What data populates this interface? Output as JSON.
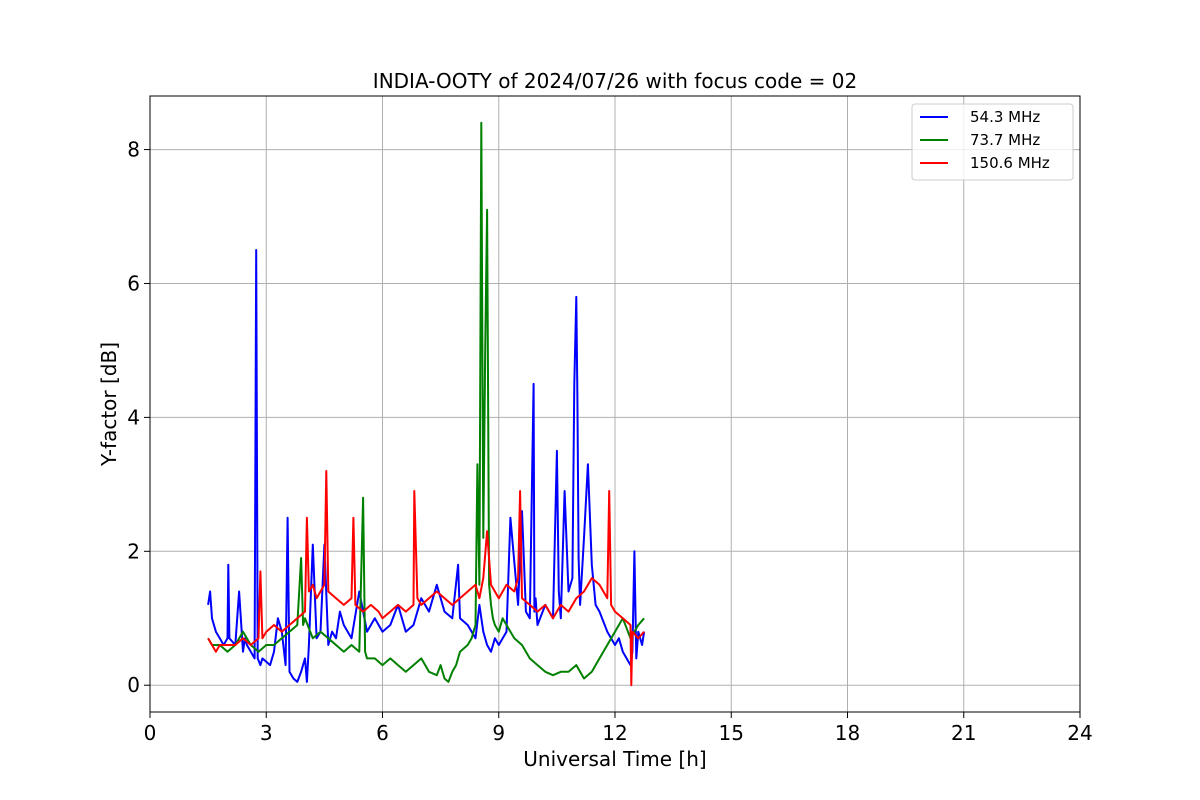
{
  "chart_data": {
    "type": "line",
    "title": "INDIA-OOTY of 2024/07/26 with focus code = 02",
    "xlabel": "Universal Time [h]",
    "ylabel": "Y-factor [dB]",
    "xlim": [
      0,
      24
    ],
    "ylim": [
      -0.4,
      8.8
    ],
    "xticks": [
      0,
      3,
      6,
      9,
      12,
      15,
      18,
      21,
      24
    ],
    "yticks": [
      0,
      2,
      4,
      6,
      8
    ],
    "grid": true,
    "legend_position": "top-right",
    "series": [
      {
        "name": " 54.3 MHz",
        "color": "#0000ff",
        "x": [
          1.5,
          1.55,
          1.6,
          1.7,
          1.8,
          1.9,
          2.0,
          2.02,
          2.05,
          2.2,
          2.3,
          2.4,
          2.45,
          2.5,
          2.6,
          2.7,
          2.74,
          2.78,
          2.85,
          2.9,
          3.0,
          3.1,
          3.2,
          3.3,
          3.4,
          3.5,
          3.55,
          3.6,
          3.7,
          3.8,
          3.9,
          4.0,
          4.05,
          4.1,
          4.2,
          4.3,
          4.4,
          4.5,
          4.6,
          4.7,
          4.8,
          4.9,
          5.0,
          5.2,
          5.4,
          5.6,
          5.8,
          6.0,
          6.2,
          6.4,
          6.6,
          6.8,
          7.0,
          7.2,
          7.4,
          7.6,
          7.8,
          7.95,
          8.0,
          8.2,
          8.4,
          8.5,
          8.6,
          8.7,
          8.8,
          8.9,
          9.0,
          9.2,
          9.3,
          9.5,
          9.6,
          9.7,
          9.8,
          9.9,
          9.92,
          9.95,
          10.0,
          10.2,
          10.4,
          10.5,
          10.55,
          10.6,
          10.7,
          10.8,
          10.9,
          10.95,
          11.0,
          11.03,
          11.06,
          11.1,
          11.2,
          11.3,
          11.4,
          11.5,
          11.6,
          11.8,
          12.0,
          12.1,
          12.2,
          12.3,
          12.4,
          12.45,
          12.5,
          12.55,
          12.6,
          12.7,
          12.75
        ],
        "values": [
          1.2,
          1.4,
          1.0,
          0.8,
          0.7,
          0.6,
          0.7,
          1.8,
          0.7,
          0.6,
          1.4,
          0.5,
          0.7,
          0.6,
          0.5,
          0.4,
          6.5,
          0.4,
          0.3,
          0.4,
          0.35,
          0.3,
          0.5,
          1.0,
          0.8,
          0.3,
          2.5,
          0.2,
          0.1,
          0.05,
          0.2,
          0.4,
          0.05,
          0.6,
          2.1,
          0.7,
          0.8,
          2.1,
          0.6,
          0.8,
          0.7,
          1.1,
          0.9,
          0.7,
          1.4,
          0.8,
          1.0,
          0.8,
          0.9,
          1.2,
          0.8,
          0.9,
          1.3,
          1.1,
          1.5,
          1.1,
          1.0,
          1.8,
          1.0,
          0.9,
          0.7,
          1.2,
          0.8,
          0.6,
          0.5,
          0.7,
          0.6,
          0.8,
          2.5,
          1.2,
          2.6,
          1.1,
          1.0,
          4.5,
          1.1,
          1.3,
          0.9,
          1.2,
          1.0,
          3.5,
          1.4,
          1.0,
          2.9,
          1.4,
          1.6,
          4.5,
          5.8,
          4.3,
          1.9,
          1.2,
          2.2,
          3.3,
          1.8,
          1.2,
          1.1,
          0.8,
          0.6,
          0.7,
          0.5,
          0.4,
          0.3,
          0.5,
          2.0,
          0.4,
          0.8,
          0.6,
          0.8
        ]
      },
      {
        "name": " 73.7 MHz",
        "color": "#008000",
        "x": [
          1.5,
          1.6,
          1.8,
          2.0,
          2.2,
          2.4,
          2.6,
          2.8,
          3.0,
          3.2,
          3.4,
          3.6,
          3.8,
          3.9,
          3.95,
          4.0,
          4.2,
          4.4,
          4.6,
          4.8,
          5.0,
          5.2,
          5.4,
          5.5,
          5.55,
          5.6,
          5.8,
          6.0,
          6.2,
          6.4,
          6.6,
          6.8,
          7.0,
          7.2,
          7.4,
          7.5,
          7.6,
          7.7,
          7.8,
          7.9,
          8.0,
          8.2,
          8.3,
          8.4,
          8.45,
          8.5,
          8.55,
          8.6,
          8.65,
          8.7,
          8.75,
          8.8,
          8.85,
          8.9,
          9.0,
          9.1,
          9.2,
          9.4,
          9.6,
          9.8,
          10.0,
          10.2,
          10.4,
          10.6,
          10.8,
          11.0,
          11.2,
          11.4,
          11.6,
          11.8,
          12.0,
          12.2,
          12.4,
          12.6,
          12.75
        ],
        "values": [
          0.7,
          0.6,
          0.6,
          0.5,
          0.6,
          0.8,
          0.6,
          0.5,
          0.6,
          0.6,
          0.7,
          0.8,
          0.9,
          1.9,
          0.9,
          1.0,
          0.7,
          0.8,
          0.7,
          0.6,
          0.5,
          0.6,
          0.5,
          2.8,
          0.5,
          0.4,
          0.4,
          0.3,
          0.4,
          0.3,
          0.2,
          0.3,
          0.4,
          0.2,
          0.15,
          0.3,
          0.1,
          0.05,
          0.2,
          0.3,
          0.5,
          0.6,
          0.7,
          0.9,
          3.3,
          1.5,
          8.4,
          2.2,
          5.0,
          7.1,
          1.5,
          1.2,
          1.0,
          0.9,
          0.8,
          1.0,
          0.9,
          0.7,
          0.6,
          0.4,
          0.3,
          0.2,
          0.15,
          0.2,
          0.2,
          0.3,
          0.1,
          0.2,
          0.4,
          0.6,
          0.8,
          1.0,
          0.7,
          0.9,
          1.0
        ]
      },
      {
        "name": "150.6 MHz",
        "color": "#ff0000",
        "x": [
          1.5,
          1.6,
          1.7,
          1.8,
          2.0,
          2.2,
          2.4,
          2.6,
          2.8,
          2.85,
          2.9,
          3.0,
          3.2,
          3.4,
          3.6,
          3.8,
          4.0,
          4.05,
          4.1,
          4.2,
          4.3,
          4.4,
          4.5,
          4.55,
          4.6,
          4.8,
          5.0,
          5.2,
          5.25,
          5.3,
          5.5,
          5.7,
          5.9,
          6.0,
          6.2,
          6.4,
          6.6,
          6.8,
          6.82,
          6.9,
          7.0,
          7.2,
          7.4,
          7.6,
          7.8,
          8.0,
          8.2,
          8.4,
          8.5,
          8.6,
          8.7,
          8.8,
          8.9,
          9.0,
          9.2,
          9.4,
          9.5,
          9.55,
          9.6,
          9.8,
          10.0,
          10.2,
          10.4,
          10.6,
          10.8,
          11.0,
          11.2,
          11.4,
          11.6,
          11.8,
          11.85,
          11.9,
          12.0,
          12.2,
          12.4,
          12.42,
          12.45,
          12.6,
          12.75
        ],
        "values": [
          0.7,
          0.6,
          0.5,
          0.6,
          0.6,
          0.6,
          0.7,
          0.6,
          0.7,
          1.7,
          0.7,
          0.8,
          0.9,
          0.8,
          0.9,
          1.0,
          1.1,
          2.5,
          1.4,
          1.5,
          1.3,
          1.4,
          1.5,
          3.2,
          1.4,
          1.3,
          1.2,
          1.3,
          2.5,
          1.2,
          1.1,
          1.2,
          1.1,
          1.0,
          1.1,
          1.2,
          1.1,
          1.2,
          2.9,
          1.3,
          1.2,
          1.3,
          1.4,
          1.3,
          1.2,
          1.3,
          1.4,
          1.5,
          1.3,
          1.6,
          2.3,
          1.5,
          1.4,
          1.3,
          1.5,
          1.4,
          1.6,
          2.9,
          1.3,
          1.2,
          1.1,
          1.2,
          1.0,
          1.2,
          1.1,
          1.3,
          1.4,
          1.6,
          1.5,
          1.3,
          2.9,
          1.2,
          1.1,
          1.0,
          0.9,
          0.0,
          0.8,
          0.7,
          0.8
        ]
      }
    ]
  }
}
